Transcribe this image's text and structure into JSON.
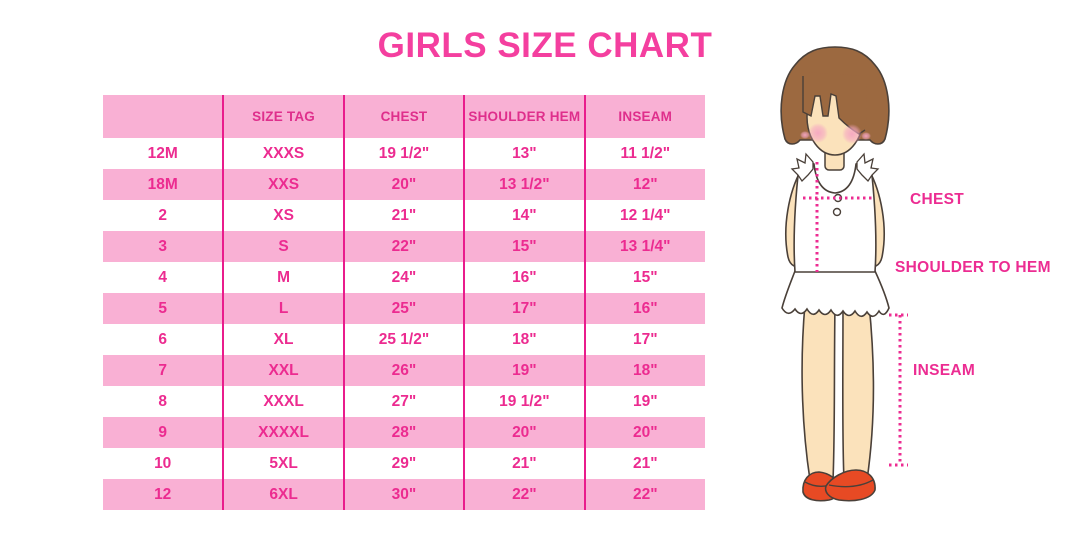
{
  "title": "GIRLS SIZE CHART",
  "chart_data": {
    "type": "table",
    "title": "GIRLS SIZE CHART",
    "columns": [
      "",
      "SIZE TAG",
      "CHEST",
      "SHOULDER HEM",
      "INSEAM"
    ],
    "rows": [
      [
        "12M",
        "XXXS",
        "19 1/2\"",
        "13\"",
        "11 1/2\""
      ],
      [
        "18M",
        "XXS",
        "20\"",
        "13 1/2\"",
        "12\""
      ],
      [
        "2",
        "XS",
        "21\"",
        "14\"",
        "12 1/4\""
      ],
      [
        "3",
        "S",
        "22\"",
        "15\"",
        "13 1/4\""
      ],
      [
        "4",
        "M",
        "24\"",
        "16\"",
        "15\""
      ],
      [
        "5",
        "L",
        "25\"",
        "17\"",
        "16\""
      ],
      [
        "6",
        "XL",
        "25 1/2\"",
        "18\"",
        "17\""
      ],
      [
        "7",
        "XXL",
        "26\"",
        "19\"",
        "18\""
      ],
      [
        "8",
        "XXXL",
        "27\"",
        "19 1/2\"",
        "19\""
      ],
      [
        "9",
        "XXXXL",
        "28\"",
        "20\"",
        "20\""
      ],
      [
        "10",
        "5XL",
        "29\"",
        "21\"",
        "21\""
      ],
      [
        "12",
        "6XL",
        "30\"",
        "22\"",
        "22\""
      ]
    ],
    "row_shading": "alternating, odd data rows pink starting with second row (18M)"
  },
  "figure": {
    "labels": {
      "chest": "CHEST",
      "shoulder_to_hem": "SHOULDER TO HEM",
      "inseam": "INSEAM"
    }
  },
  "colors": {
    "title_pink": "#F43F9F",
    "row_pink": "#F9B0D4",
    "divider_pink": "#E91C8C",
    "cell_text_pink": "#EC2B90",
    "header_text_pink": "#DF2F8C",
    "measure_line_pink": "#EC2C92",
    "hair_brown": "#9C6940",
    "skin": "#FBE2BB",
    "cheek_pink": "#F5A6C2",
    "shoe_red": "#E74A24",
    "outline": "#4A4039",
    "background": "#FFFFFF"
  }
}
